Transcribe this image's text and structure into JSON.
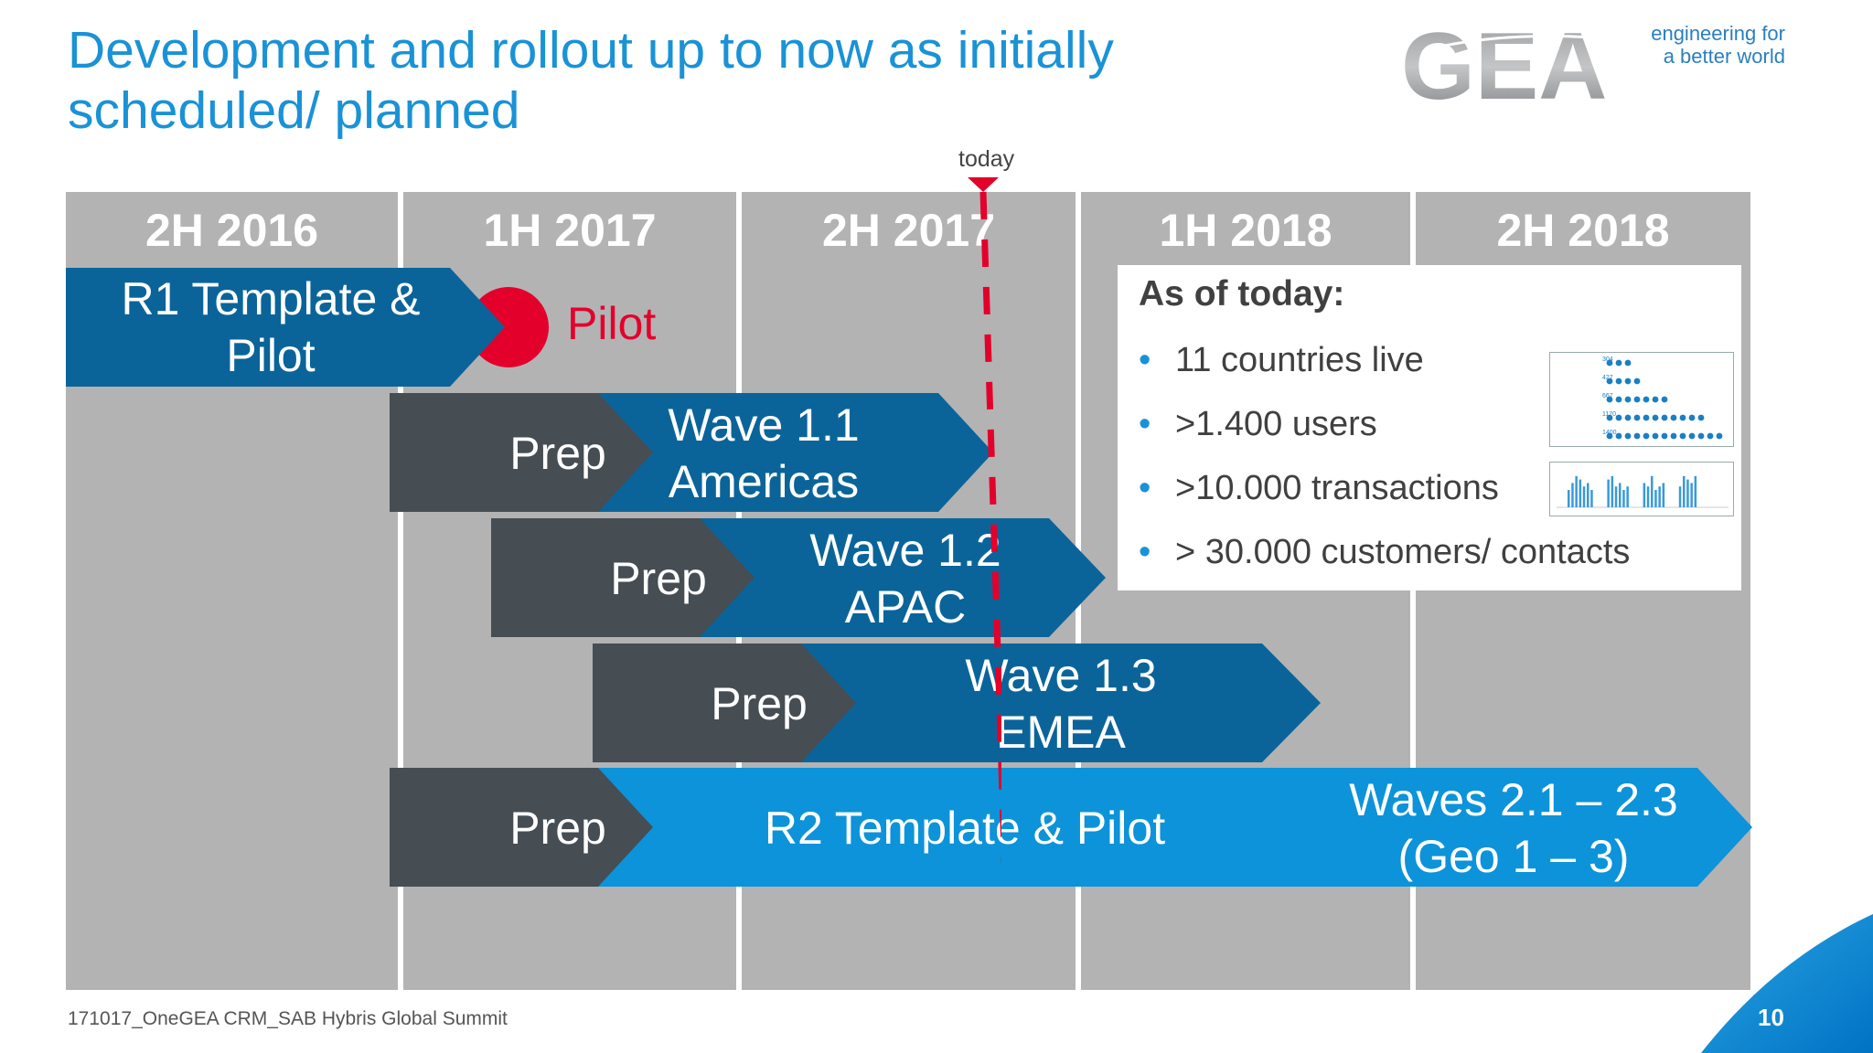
{
  "title_line1": "Development and rollout up to now as initially",
  "title_line2": "scheduled/ planned",
  "logo": {
    "text": "GEA",
    "tagline_line1": "engineering for",
    "tagline_line2": "a better world"
  },
  "today_label": "today",
  "columns": [
    "2H 2016",
    "1H 2017",
    "2H 2017",
    "1H 2018",
    "2H 2018"
  ],
  "r1": {
    "line1": "R1 Template &",
    "line2": "Pilot",
    "pilot_label": "Pilot"
  },
  "prep_label": "Prep",
  "wave11": {
    "line1": "Wave 1.1",
    "line2": "Americas"
  },
  "wave12": {
    "line1": "Wave 1.2",
    "line2": "APAC"
  },
  "wave13": {
    "line1": "Wave 1.3",
    "line2": "EMEA"
  },
  "r2": {
    "label": "R2 Template & Pilot",
    "waves_line1": "Waves 2.1 – 2.3",
    "waves_line2": "(Geo 1 – 3)"
  },
  "info": {
    "title": "As of today:",
    "bullets": [
      "11 countries live",
      ">1.400 users",
      ">10.000 transactions",
      "> 30.000 customers/ contacts"
    ]
  },
  "thumbnail_users": [
    "304",
    "427",
    "667",
    "1170",
    "1400"
  ],
  "footer": "171017_OneGEA CRM_SAB Hybris Global Summit",
  "page_number": "10",
  "colors": {
    "accent": "#1a92d6",
    "dark_blue": "#0b6499",
    "prep_gray": "#464d53",
    "light_blue": "#0d93d9",
    "red": "#e3002b",
    "column_gray": "#b3b3b4"
  }
}
